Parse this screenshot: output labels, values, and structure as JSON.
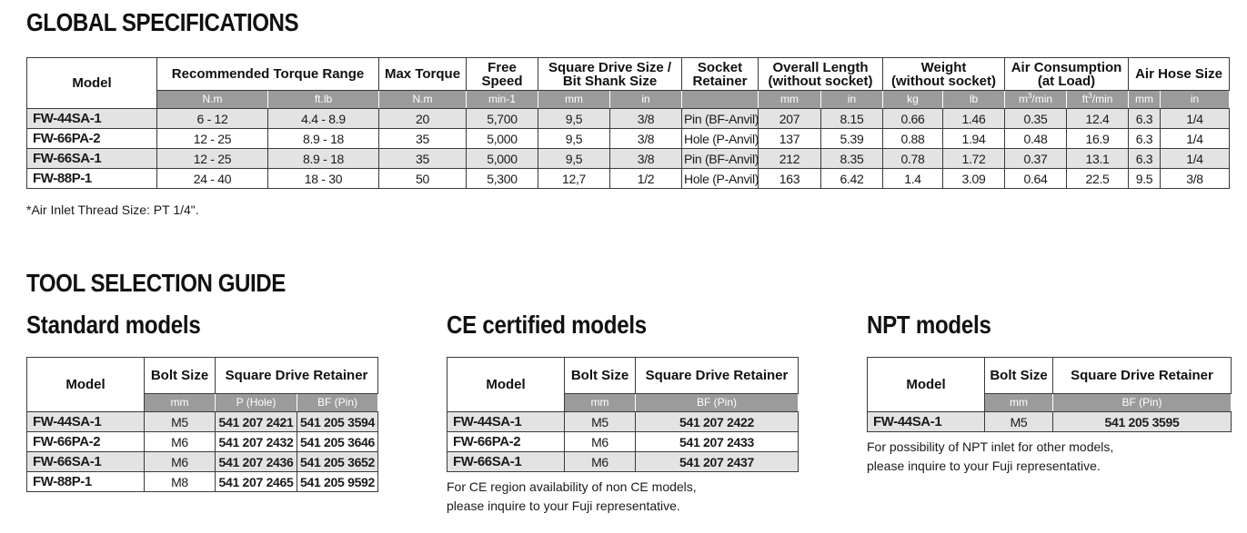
{
  "global": {
    "title": "GLOBAL SPECIFICATIONS",
    "headers": {
      "model": "Model",
      "torque_range": "Recommended Torque Range",
      "max_torque": "Max Torque",
      "free_speed_1": "Free",
      "free_speed_2": "Speed",
      "square_drive_1": "Square Drive Size /",
      "square_drive_2": "Bit Shank Size",
      "socket_1": "Socket",
      "socket_2": "Retainer",
      "length_1": "Overall Length",
      "length_2": "(without socket)",
      "weight_1": "Weight",
      "weight_2": "(without socket)",
      "air_1": "Air Consumption",
      "air_2": "(at Load)",
      "hose": "Air Hose Size"
    },
    "units": {
      "torque_nm": "N.m",
      "torque_ftlb": "ft.lb",
      "max_nm": "N.m",
      "speed": "min-1",
      "drive_mm": "mm",
      "drive_in": "in",
      "length_mm": "mm",
      "length_in": "in",
      "weight_kg": "kg",
      "weight_lb": "lb",
      "air_m3_pre": "m",
      "air_m3_sup": "3",
      "air_m3_post": "/min",
      "air_ft3_pre": "ft",
      "air_ft3_sup": "3",
      "air_ft3_post": "/min",
      "hose_mm": "mm",
      "hose_in": "in"
    },
    "rows": [
      {
        "model": "FW-44SA-1",
        "t_nm": "6 - 12",
        "t_ft": "4.4 - 8.9",
        "max": "20",
        "speed": "5,700",
        "d_mm": "9,5",
        "d_in": "3/8",
        "socket": "Pin (BF-Anvil)",
        "l_mm": "207",
        "l_in": "8.15",
        "w_kg": "0.66",
        "w_lb": "1.46",
        "a_m3": "0.35",
        "a_ft3": "12.4",
        "h_mm": "6.3",
        "h_in": "1/4"
      },
      {
        "model": "FW-66PA-2",
        "t_nm": "12 - 25",
        "t_ft": "8.9 - 18",
        "max": "35",
        "speed": "5,000",
        "d_mm": "9,5",
        "d_in": "3/8",
        "socket": "Hole (P-Anvil)",
        "l_mm": "137",
        "l_in": "5.39",
        "w_kg": "0.88",
        "w_lb": "1.94",
        "a_m3": "0.48",
        "a_ft3": "16.9",
        "h_mm": "6.3",
        "h_in": "1/4"
      },
      {
        "model": "FW-66SA-1",
        "t_nm": "12 - 25",
        "t_ft": "8.9 - 18",
        "max": "35",
        "speed": "5,000",
        "d_mm": "9,5",
        "d_in": "3/8",
        "socket": "Pin (BF-Anvil)",
        "l_mm": "212",
        "l_in": "8.35",
        "w_kg": "0.78",
        "w_lb": "1.72",
        "a_m3": "0.37",
        "a_ft3": "13.1",
        "h_mm": "6.3",
        "h_in": "1/4"
      },
      {
        "model": "FW-88P-1",
        "t_nm": "24 - 40",
        "t_ft": "18 - 30",
        "max": "50",
        "speed": "5,300",
        "d_mm": "12,7",
        "d_in": "1/2",
        "socket": "Hole (P-Anvil)",
        "l_mm": "163",
        "l_in": "6.42",
        "w_kg": "1.4",
        "w_lb": "3.09",
        "a_m3": "0.64",
        "a_ft3": "22.5",
        "h_mm": "9.5",
        "h_in": "3/8"
      }
    ],
    "note": "*Air Inlet Thread Size: PT 1/4\"."
  },
  "guide": {
    "title": "TOOL SELECTION GUIDE",
    "standard": {
      "title": "Standard models",
      "headers": {
        "model": "Model",
        "bolt": "Bolt Size",
        "retainer": "Square Drive Retainer",
        "unit_mm": "mm",
        "unit_p": "P (Hole)",
        "unit_bf": "BF (Pin)"
      },
      "rows": [
        {
          "model": "FW-44SA-1",
          "bolt": "M5",
          "p": "541 207 2421",
          "bf": "541 205 3594"
        },
        {
          "model": "FW-66PA-2",
          "bolt": "M6",
          "p": "541 207 2432",
          "bf": "541 205 3646"
        },
        {
          "model": "FW-66SA-1",
          "bolt": "M6",
          "p": "541 207 2436",
          "bf": "541 205 3652"
        },
        {
          "model": "FW-88P-1",
          "bolt": "M8",
          "p": "541 207 2465",
          "bf": "541 205 9592"
        }
      ]
    },
    "ce": {
      "title": "CE certified models",
      "headers": {
        "model": "Model",
        "bolt": "Bolt Size",
        "retainer": "Square Drive Retainer",
        "unit_mm": "mm",
        "unit_bf": "BF (Pin)"
      },
      "rows": [
        {
          "model": "FW-44SA-1",
          "bolt": "M5",
          "bf": "541 207 2422"
        },
        {
          "model": "FW-66PA-2",
          "bolt": "M6",
          "bf": "541 207 2433"
        },
        {
          "model": "FW-66SA-1",
          "bolt": "M6",
          "bf": "541 207 2437"
        }
      ],
      "note_1": "For CE region availability of non CE models,",
      "note_2": "please inquire to your Fuji representative."
    },
    "npt": {
      "title": "NPT models",
      "headers": {
        "model": "Model",
        "bolt": "Bolt Size",
        "retainer": "Square Drive Retainer",
        "unit_mm": "mm",
        "unit_bf": "BF (Pin)"
      },
      "rows": [
        {
          "model": "FW-44SA-1",
          "bolt": "M5",
          "bf": "541 205 3595"
        }
      ],
      "note_1": "For possibility of NPT inlet for other models,",
      "note_2": "please inquire to your Fuji representative."
    }
  }
}
